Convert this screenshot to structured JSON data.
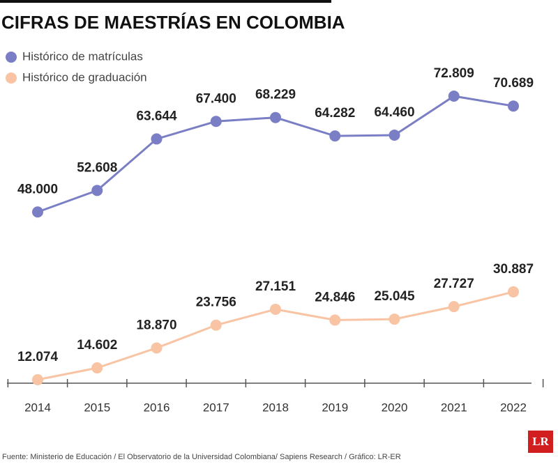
{
  "chart_data": {
    "type": "line",
    "title": "CIFRAS DE MAESTRÍAS EN COLOMBIA",
    "categories": [
      "2014",
      "2015",
      "2016",
      "2017",
      "2018",
      "2019",
      "2020",
      "2021",
      "2022"
    ],
    "series": [
      {
        "name": "Histórico de matrículas",
        "color": "#7a7ec4",
        "values": [
          48000,
          52608,
          63644,
          67400,
          68229,
          64282,
          64460,
          72809,
          70689
        ],
        "value_labels": [
          "48.000",
          "52.608",
          "63.644",
          "67.400",
          "68.229",
          "64.282",
          "64.460",
          "72.809",
          "70.689"
        ]
      },
      {
        "name": "Histórico de graduación",
        "color": "#f8c4a3",
        "values": [
          12074,
          14602,
          18870,
          23756,
          27151,
          24846,
          25045,
          27727,
          30887
        ],
        "value_labels": [
          "12.074",
          "14.602",
          "18.870",
          "23.756",
          "27.151",
          "24.846",
          "25.045",
          "27.727",
          "30.887"
        ]
      }
    ],
    "legend": "top-left",
    "source": "Fuente: Ministerio de Educación / El Observatorio de la Universidad Colombiana/ Sapiens Research / Gráfico: LR-ER",
    "logo": "LR"
  }
}
